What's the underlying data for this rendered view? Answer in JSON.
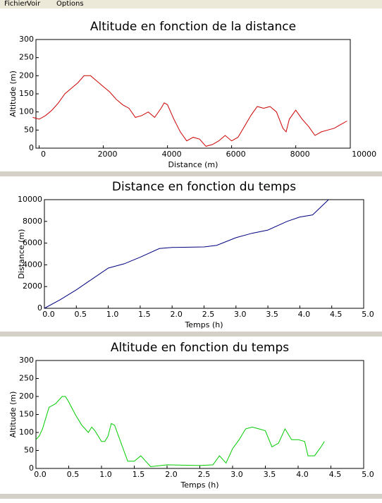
{
  "menu": [
    "Fichier",
    "Voir",
    "Options"
  ],
  "chart_data": [
    {
      "type": "line",
      "title": "Altitude en fonction de la distance",
      "x_label": "Distance (m)",
      "y_label": "Altitude (m)",
      "x": [
        -200,
        0,
        200,
        400,
        600,
        800,
        1000,
        1200,
        1400,
        1600,
        1800,
        2000,
        2200,
        2400,
        2600,
        2800,
        3000,
        3200,
        3400,
        3600,
        3800,
        3900,
        4000,
        4200,
        4400,
        4600,
        4800,
        5000,
        5200,
        5400,
        5600,
        5800,
        6000,
        6200,
        6400,
        6600,
        6800,
        7000,
        7200,
        7400,
        7600,
        7700,
        7800,
        8000,
        8200,
        8400,
        8600,
        8800,
        9000,
        9200,
        9400,
        9600
      ],
      "series": [
        {
          "color": "#cc0000",
          "values": [
            85,
            80,
            90,
            105,
            125,
            150,
            165,
            180,
            200,
            200,
            185,
            170,
            155,
            135,
            120,
            110,
            85,
            90,
            100,
            85,
            110,
            125,
            120,
            80,
            45,
            20,
            30,
            25,
            5,
            10,
            20,
            35,
            20,
            30,
            60,
            90,
            115,
            110,
            115,
            100,
            55,
            45,
            80,
            105,
            80,
            60,
            35,
            45,
            50,
            55,
            65,
            75
          ]
        }
      ],
      "xlim": [
        -100,
        9700
      ],
      "ylim": [
        0,
        300
      ],
      "xticks": [
        0,
        2000,
        4000,
        6000,
        8000,
        10000
      ],
      "yticks": [
        0,
        50,
        100,
        150,
        200,
        250,
        300
      ]
    },
    {
      "type": "line",
      "title": "Distance en fonction du temps",
      "x_label": "Temps (h)",
      "y_label": "Distance (m)",
      "x": [
        0,
        0.25,
        0.5,
        0.75,
        1.0,
        1.25,
        1.5,
        1.8,
        2.0,
        2.5,
        2.7,
        3.0,
        3.25,
        3.5,
        3.8,
        4.0,
        4.2,
        4.45
      ],
      "series": [
        {
          "color": "#000080",
          "values": [
            0,
            800,
            1700,
            2700,
            3700,
            4100,
            4700,
            5500,
            5600,
            5650,
            5800,
            6500,
            6900,
            7200,
            8000,
            8400,
            8600,
            10000
          ]
        }
      ],
      "xlim": [
        0,
        5
      ],
      "ylim": [
        0,
        10000
      ],
      "xticks": [
        {
          "value": 0,
          "label": "0.0"
        },
        0.5,
        {
          "value": 1,
          "label": "1.0"
        },
        1.5,
        {
          "value": 2,
          "label": "2.0"
        },
        2.5,
        {
          "value": 3,
          "label": "3.0"
        },
        3.5,
        {
          "value": 4,
          "label": "4.0"
        },
        4.5,
        {
          "value": 5,
          "label": "5.0"
        }
      ],
      "yticks": [
        0,
        2000,
        4000,
        6000,
        8000,
        10000
      ]
    },
    {
      "type": "line",
      "title": "Altitude en fonction du temps",
      "x_label": "Temps (h)",
      "y_label": "Altitude (m)",
      "x": [
        0,
        0.05,
        0.1,
        0.2,
        0.3,
        0.4,
        0.45,
        0.5,
        0.6,
        0.7,
        0.8,
        0.85,
        0.9,
        1.0,
        1.05,
        1.1,
        1.15,
        1.2,
        1.3,
        1.4,
        1.5,
        1.6,
        1.7,
        1.75,
        2.0,
        2.5,
        2.7,
        2.8,
        2.9,
        3.0,
        3.1,
        3.2,
        3.3,
        3.4,
        3.5,
        3.6,
        3.7,
        3.8,
        3.9,
        4.0,
        4.1,
        4.15,
        4.25,
        4.35,
        4.4
      ],
      "series": [
        {
          "color": "#00cc00",
          "values": [
            80,
            90,
            110,
            170,
            180,
            200,
            200,
            185,
            150,
            120,
            100,
            115,
            105,
            75,
            75,
            90,
            125,
            120,
            70,
            20,
            20,
            35,
            15,
            5,
            10,
            8,
            10,
            35,
            15,
            55,
            80,
            110,
            115,
            110,
            105,
            60,
            70,
            110,
            80,
            80,
            75,
            35,
            35,
            60,
            75
          ]
        }
      ],
      "xlim": [
        0,
        5
      ],
      "ylim": [
        0,
        300
      ],
      "xticks": [
        {
          "value": 0,
          "label": "0.0"
        },
        0.5,
        {
          "value": 1,
          "label": "1.0"
        },
        1.5,
        {
          "value": 2,
          "label": "2.0"
        },
        2.5,
        {
          "value": 3,
          "label": "3.0"
        },
        3.5,
        {
          "value": 4,
          "label": "4.0"
        },
        4.5,
        {
          "value": 5,
          "label": "5.0"
        }
      ],
      "yticks": [
        0,
        50,
        100,
        150,
        200,
        250,
        300
      ]
    }
  ]
}
